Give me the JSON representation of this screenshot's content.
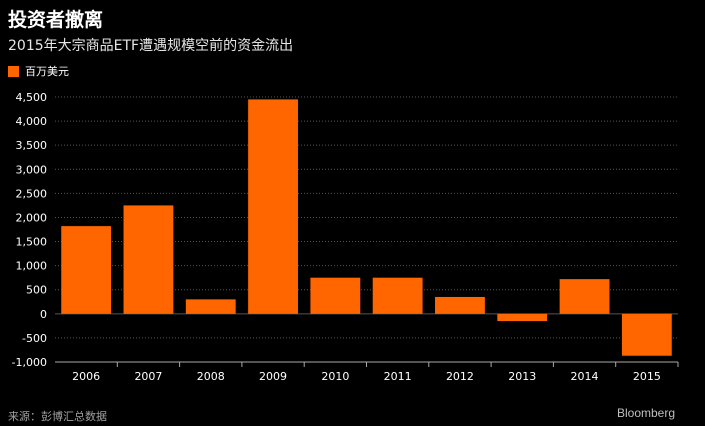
{
  "header": {
    "title": "投资者撤离",
    "subtitle": "2015年大宗商品ETF遭遇规模空前的资金流出"
  },
  "legend": {
    "label": "百万美元"
  },
  "footer": {
    "source": "来源：彭博汇总数据",
    "brand": "Bloomberg"
  },
  "colors": {
    "bar": "#ff6600",
    "grid": "#555555",
    "background": "#000000"
  },
  "chart_data": {
    "type": "bar",
    "title": "投资者撤离",
    "subtitle": "2015年大宗商品ETF遭遇规模空前的资金流出",
    "xlabel": "",
    "ylabel": "",
    "unit": "百万美元",
    "categories": [
      "2006",
      "2007",
      "2008",
      "2009",
      "2010",
      "2011",
      "2012",
      "2013",
      "2014",
      "2015"
    ],
    "series": [
      {
        "name": "百万美元",
        "values": [
          1820,
          2250,
          300,
          4450,
          750,
          750,
          350,
          -150,
          720,
          -870
        ]
      }
    ],
    "ylim": [
      -1000,
      4500
    ],
    "yticks": [
      -1000,
      -500,
      0,
      500,
      1000,
      1500,
      2000,
      2500,
      3000,
      3500,
      4000,
      4500
    ],
    "ytick_labels": [
      "-1,000",
      "-500",
      "0",
      "500",
      "1,000",
      "1,500",
      "2,000",
      "2,500",
      "3,000",
      "3,500",
      "4,000",
      "4,500"
    ],
    "grid": true,
    "legend_position": "top-left"
  }
}
